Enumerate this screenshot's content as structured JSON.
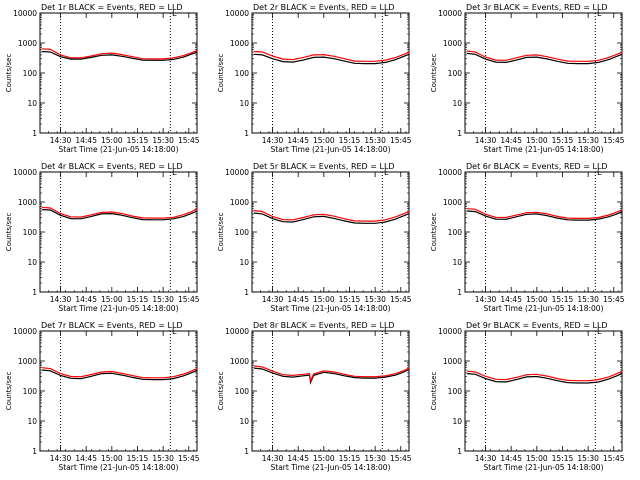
{
  "layout": {
    "rows": 3,
    "cols": 3
  },
  "colors": {
    "events": "#000000",
    "lld": "#ff0000",
    "axes": "#000000",
    "background": "#ffffff"
  },
  "chart_data": [
    {
      "type": "line",
      "title": "Det 1r BLACK = Events, RED = LLD",
      "corner_mark": "L",
      "xlabel": "Start Time (21-Jun-05 14:18:00)",
      "ylabel": "Counts/sec",
      "yscale": "log",
      "ylim": [
        1,
        10000
      ],
      "xlim": [
        14.3,
        15.83
      ],
      "yticks": [
        "1",
        "10",
        "100",
        "1000",
        "10000"
      ],
      "xticks": [
        "14:30",
        "14:45",
        "15:00",
        "15:15",
        "15:30",
        "15:45"
      ],
      "xtick_values": [
        14.5,
        14.75,
        15.0,
        15.25,
        15.5,
        15.75
      ],
      "vlines": [
        14.5,
        15.57
      ],
      "x": [
        14.32,
        14.4,
        14.5,
        14.6,
        14.7,
        14.8,
        14.9,
        15.0,
        15.1,
        15.2,
        15.3,
        15.4,
        15.5,
        15.6,
        15.7,
        15.78,
        15.83
      ],
      "series": [
        {
          "name": "Events",
          "color": "#000000",
          "values": [
            520,
            500,
            350,
            290,
            290,
            330,
            390,
            400,
            360,
            310,
            270,
            265,
            265,
            285,
            340,
            430,
            490
          ]
        },
        {
          "name": "LLD",
          "color": "#ff0000",
          "values": [
            640,
            610,
            400,
            320,
            320,
            370,
            440,
            460,
            410,
            350,
            300,
            295,
            295,
            320,
            380,
            480,
            560
          ]
        }
      ]
    },
    {
      "type": "line",
      "title": "Det 2r BLACK = Events, RED = LLD",
      "corner_mark": "L",
      "xlabel": "Start Time (21-Jun-05 14:18:00)",
      "ylabel": "Counts/sec",
      "yscale": "log",
      "ylim": [
        1,
        10000
      ],
      "xlim": [
        14.3,
        15.83
      ],
      "yticks": [
        "1",
        "10",
        "100",
        "1000",
        "10000"
      ],
      "xticks": [
        "14:30",
        "14:45",
        "15:00",
        "15:15",
        "15:30",
        "15:45"
      ],
      "xtick_values": [
        14.5,
        14.75,
        15.0,
        15.25,
        15.5,
        15.75
      ],
      "vlines": [
        14.5,
        15.57
      ],
      "x": [
        14.32,
        14.4,
        14.5,
        14.6,
        14.7,
        14.8,
        14.9,
        15.0,
        15.1,
        15.2,
        15.3,
        15.4,
        15.5,
        15.6,
        15.7,
        15.78,
        15.83
      ],
      "series": [
        {
          "name": "Events",
          "color": "#000000",
          "values": [
            420,
            400,
            300,
            240,
            230,
            270,
            330,
            340,
            300,
            250,
            210,
            205,
            205,
            225,
            280,
            360,
            420
          ]
        },
        {
          "name": "LLD",
          "color": "#ff0000",
          "values": [
            520,
            500,
            370,
            290,
            280,
            330,
            400,
            410,
            360,
            300,
            250,
            245,
            245,
            270,
            330,
            420,
            490
          ]
        }
      ]
    },
    {
      "type": "line",
      "title": "Det 3r BLACK = Events, RED = LLD",
      "corner_mark": "L",
      "xlabel": "Start Time (21-Jun-05 14:18:00)",
      "ylabel": "Counts/sec",
      "yscale": "log",
      "ylim": [
        1,
        10000
      ],
      "xlim": [
        14.3,
        15.83
      ],
      "yticks": [
        "1",
        "10",
        "100",
        "1000",
        "10000"
      ],
      "xticks": [
        "14:30",
        "14:45",
        "15:00",
        "15:15",
        "15:30",
        "15:45"
      ],
      "xtick_values": [
        14.5,
        14.75,
        15.0,
        15.25,
        15.5,
        15.75
      ],
      "vlines": [
        14.5,
        15.57
      ],
      "x": [
        14.32,
        14.4,
        14.5,
        14.6,
        14.7,
        14.8,
        14.9,
        15.0,
        15.1,
        15.2,
        15.3,
        15.4,
        15.5,
        15.6,
        15.7,
        15.78,
        15.83
      ],
      "series": [
        {
          "name": "Events",
          "color": "#000000",
          "values": [
            450,
            420,
            290,
            230,
            225,
            270,
            330,
            340,
            295,
            245,
            210,
            205,
            205,
            225,
            280,
            360,
            420
          ]
        },
        {
          "name": "LLD",
          "color": "#ff0000",
          "values": [
            540,
            500,
            340,
            270,
            265,
            320,
            390,
            400,
            350,
            290,
            250,
            245,
            245,
            265,
            330,
            420,
            490
          ]
        }
      ]
    },
    {
      "type": "line",
      "title": "Det 4r BLACK = Events, RED = LLD",
      "corner_mark": "L",
      "xlabel": "Start Time (21-Jun-05 14:18:00)",
      "ylabel": "Counts/sec",
      "yscale": "log",
      "ylim": [
        1,
        10000
      ],
      "xlim": [
        14.3,
        15.83
      ],
      "yticks": [
        "1",
        "10",
        "100",
        "1000",
        "10000"
      ],
      "xticks": [
        "14:30",
        "14:45",
        "15:00",
        "15:15",
        "15:30",
        "15:45"
      ],
      "xtick_values": [
        14.5,
        14.75,
        15.0,
        15.25,
        15.5,
        15.75
      ],
      "vlines": [
        14.5,
        15.57
      ],
      "x": [
        14.32,
        14.4,
        14.5,
        14.6,
        14.7,
        14.8,
        14.9,
        15.0,
        15.1,
        15.2,
        15.3,
        15.4,
        15.5,
        15.6,
        15.7,
        15.78,
        15.83
      ],
      "series": [
        {
          "name": "Events",
          "color": "#000000",
          "values": [
            560,
            540,
            360,
            280,
            275,
            330,
            400,
            410,
            360,
            300,
            260,
            255,
            255,
            275,
            330,
            420,
            500
          ]
        },
        {
          "name": "LLD",
          "color": "#ff0000",
          "values": [
            660,
            630,
            410,
            320,
            315,
            375,
            450,
            465,
            410,
            340,
            295,
            290,
            290,
            310,
            380,
            480,
            600
          ]
        }
      ]
    },
    {
      "type": "line",
      "title": "Det 5r BLACK = Events, RED = LLD",
      "corner_mark": "L",
      "xlabel": "Start Time (21-Jun-05 14:18:00)",
      "ylabel": "Counts/sec",
      "yscale": "log",
      "ylim": [
        1,
        10000
      ],
      "xlim": [
        14.3,
        15.83
      ],
      "yticks": [
        "1",
        "10",
        "100",
        "1000",
        "10000"
      ],
      "xticks": [
        "14:30",
        "14:45",
        "15:00",
        "15:15",
        "15:30",
        "15:45"
      ],
      "xtick_values": [
        14.5,
        14.75,
        15.0,
        15.25,
        15.5,
        15.75
      ],
      "vlines": [
        14.5,
        15.57
      ],
      "x": [
        14.32,
        14.4,
        14.5,
        14.6,
        14.7,
        14.8,
        14.9,
        15.0,
        15.1,
        15.2,
        15.3,
        15.4,
        15.5,
        15.6,
        15.7,
        15.78,
        15.83
      ],
      "series": [
        {
          "name": "Events",
          "color": "#000000",
          "values": [
            430,
            400,
            280,
            220,
            215,
            260,
            320,
            330,
            285,
            235,
            200,
            195,
            195,
            215,
            270,
            350,
            410
          ]
        },
        {
          "name": "LLD",
          "color": "#ff0000",
          "values": [
            520,
            480,
            330,
            260,
            255,
            305,
            375,
            385,
            335,
            275,
            235,
            230,
            230,
            255,
            320,
            410,
            480
          ]
        }
      ]
    },
    {
      "type": "line",
      "title": "Det 6r BLACK = Events, RED = LLD",
      "corner_mark": "L",
      "xlabel": "Start Time (21-Jun-05 14:18:00)",
      "ylabel": "Counts/sec",
      "yscale": "log",
      "ylim": [
        1,
        10000
      ],
      "xlim": [
        14.3,
        15.83
      ],
      "yticks": [
        "1",
        "10",
        "100",
        "1000",
        "10000"
      ],
      "xticks": [
        "14:30",
        "14:45",
        "15:00",
        "15:15",
        "15:30",
        "15:45"
      ],
      "xtick_values": [
        14.5,
        14.75,
        15.0,
        15.25,
        15.5,
        15.75
      ],
      "vlines": [
        14.5,
        15.57
      ],
      "x": [
        14.32,
        14.4,
        14.5,
        14.6,
        14.7,
        14.8,
        14.9,
        15.0,
        15.1,
        15.2,
        15.3,
        15.4,
        15.5,
        15.6,
        15.7,
        15.78,
        15.83
      ],
      "series": [
        {
          "name": "Events",
          "color": "#000000",
          "values": [
            500,
            480,
            340,
            270,
            265,
            320,
            390,
            400,
            350,
            290,
            255,
            250,
            250,
            270,
            320,
            400,
            470
          ]
        },
        {
          "name": "LLD",
          "color": "#ff0000",
          "values": [
            600,
            570,
            390,
            310,
            305,
            365,
            440,
            455,
            400,
            330,
            290,
            285,
            285,
            305,
            370,
            460,
            550
          ]
        }
      ]
    },
    {
      "type": "line",
      "title": "Det 7r BLACK = Events, RED = LLD",
      "corner_mark": "L",
      "xlabel": "Start Time (21-Jun-05 14:18:00)",
      "ylabel": "Counts/sec",
      "yscale": "log",
      "ylim": [
        1,
        10000
      ],
      "xlim": [
        14.3,
        15.83
      ],
      "yticks": [
        "1",
        "10",
        "100",
        "1000",
        "10000"
      ],
      "xticks": [
        "14:30",
        "14:45",
        "15:00",
        "15:15",
        "15:30",
        "15:45"
      ],
      "xtick_values": [
        14.5,
        14.75,
        15.0,
        15.25,
        15.5,
        15.75
      ],
      "vlines": [
        14.5,
        15.57
      ],
      "x": [
        14.32,
        14.4,
        14.5,
        14.6,
        14.7,
        14.8,
        14.9,
        15.0,
        15.1,
        15.2,
        15.3,
        15.4,
        15.5,
        15.6,
        15.7,
        15.78,
        15.83
      ],
      "series": [
        {
          "name": "Events",
          "color": "#000000",
          "values": [
            500,
            470,
            330,
            265,
            260,
            310,
            380,
            390,
            340,
            285,
            245,
            240,
            240,
            260,
            320,
            410,
            480
          ]
        },
        {
          "name": "LLD",
          "color": "#ff0000",
          "values": [
            600,
            560,
            380,
            305,
            300,
            355,
            430,
            445,
            390,
            325,
            280,
            275,
            275,
            300,
            370,
            470,
            560
          ]
        }
      ]
    },
    {
      "type": "line",
      "title": "Det 8r BLACK = Events, RED = LLD",
      "corner_mark": "L",
      "xlabel": "Start Time (21-Jun-05 14:18:00)",
      "ylabel": "Counts/sec",
      "yscale": "log",
      "ylim": [
        1,
        10000
      ],
      "xlim": [
        14.3,
        15.83
      ],
      "yticks": [
        "1",
        "10",
        "100",
        "1000",
        "10000"
      ],
      "xticks": [
        "14:30",
        "14:45",
        "15:00",
        "15:15",
        "15:30",
        "15:45"
      ],
      "xtick_values": [
        14.5,
        14.75,
        15.0,
        15.25,
        15.5,
        15.75
      ],
      "vlines": [
        14.5,
        15.57
      ],
      "x": [
        14.32,
        14.4,
        14.5,
        14.6,
        14.7,
        14.8,
        14.86,
        14.87,
        14.9,
        15.0,
        15.1,
        15.2,
        15.3,
        15.4,
        15.5,
        15.6,
        15.7,
        15.78,
        15.83
      ],
      "series": [
        {
          "name": "Events",
          "color": "#000000",
          "values": [
            580,
            540,
            400,
            310,
            290,
            320,
            340,
            190,
            330,
            420,
            380,
            320,
            280,
            270,
            270,
            290,
            340,
            430,
            520
          ]
        },
        {
          "name": "LLD",
          "color": "#ff0000",
          "values": [
            680,
            630,
            460,
            350,
            330,
            360,
            380,
            220,
            370,
            470,
            430,
            360,
            310,
            300,
            300,
            320,
            380,
            480,
            590
          ]
        }
      ]
    },
    {
      "type": "line",
      "title": "Det 9r BLACK = Events, RED = LLD",
      "corner_mark": "L",
      "xlabel": "Start Time (21-Jun-05 14:18:00)",
      "ylabel": "Counts/sec",
      "yscale": "log",
      "ylim": [
        1,
        10000
      ],
      "xlim": [
        14.3,
        15.83
      ],
      "yticks": [
        "1",
        "10",
        "100",
        "1000",
        "10000"
      ],
      "xticks": [
        "14:30",
        "14:45",
        "15:00",
        "15:15",
        "15:30",
        "15:45"
      ],
      "xtick_values": [
        14.5,
        14.75,
        15.0,
        15.25,
        15.5,
        15.75
      ],
      "vlines": [
        14.5,
        15.57
      ],
      "x": [
        14.32,
        14.4,
        14.5,
        14.6,
        14.7,
        14.8,
        14.9,
        15.0,
        15.1,
        15.2,
        15.3,
        15.4,
        15.5,
        15.6,
        15.7,
        15.78,
        15.83
      ],
      "series": [
        {
          "name": "Events",
          "color": "#000000",
          "values": [
            380,
            360,
            260,
            205,
            200,
            240,
            295,
            305,
            265,
            220,
            190,
            185,
            185,
            200,
            250,
            320,
            380
          ]
        },
        {
          "name": "LLD",
          "color": "#ff0000",
          "values": [
            460,
            430,
            310,
            245,
            240,
            285,
            350,
            360,
            315,
            260,
            225,
            220,
            220,
            240,
            295,
            380,
            450
          ]
        }
      ]
    }
  ]
}
